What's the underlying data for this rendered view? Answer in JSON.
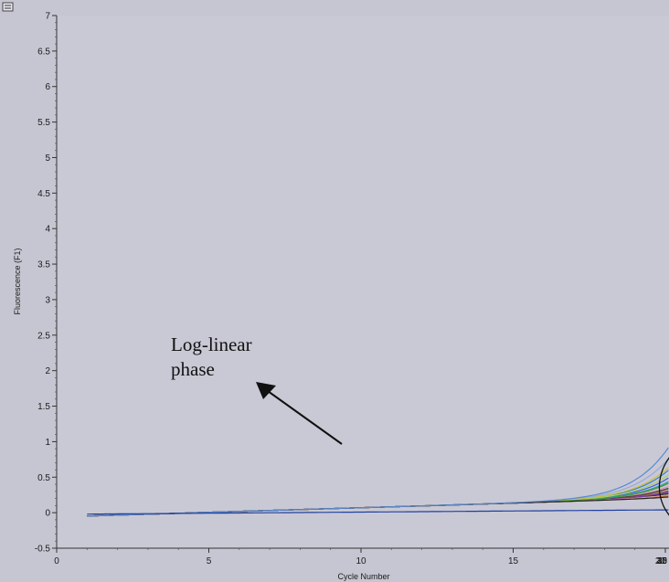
{
  "chart_data": {
    "type": "line",
    "xlabel": "Cycle Number",
    "ylabel": "Fluorescence (F1)",
    "xlim": [
      0,
      40
    ],
    "ylim": [
      -0.5,
      7
    ],
    "x_ticks": [
      0,
      5,
      10,
      15,
      20,
      25,
      30,
      35,
      40
    ],
    "x_tick_labels": [
      "0",
      "5",
      "10",
      "15",
      "20",
      "25",
      "30",
      "35",
      "40"
    ],
    "y_ticks": [
      -0.5,
      0,
      0.5,
      1,
      1.5,
      2,
      2.5,
      3,
      3.5,
      4,
      4.5,
      5,
      5.5,
      6,
      6.5,
      7
    ],
    "y_tick_labels": [
      "-0.5",
      "0",
      "0.5",
      "1",
      "1.5",
      "2",
      "2.5",
      "3",
      "3.5",
      "4",
      "4.5",
      "5",
      "5.5",
      "6",
      "6.5",
      "7"
    ],
    "grid": false,
    "annotation": {
      "lines": [
        "Log-linear",
        "phase"
      ],
      "target": {
        "x": 21.5,
        "y": 0.35
      }
    },
    "series": [
      {
        "color": "#e8202a",
        "curve": {
          "base": -0.06,
          "slope": 0.013,
          "plateau": 6.95,
          "midpoint": 25.4,
          "steepness": 0.95
        }
      },
      {
        "color": "#1f8f4a",
        "curve": {
          "base": -0.06,
          "slope": 0.013,
          "plateau": 6.48,
          "midpoint": 24.1,
          "steepness": 0.95
        }
      },
      {
        "color": "#1f3f8a",
        "curve": {
          "base": -0.06,
          "slope": 0.013,
          "plateau": 6.4,
          "midpoint": 24.5,
          "steepness": 0.95
        }
      },
      {
        "color": "#222222",
        "curve": {
          "base": -0.06,
          "slope": 0.013,
          "plateau": 6.35,
          "midpoint": 24.9,
          "steepness": 0.95
        }
      },
      {
        "color": "#b03090",
        "curve": {
          "base": -0.06,
          "slope": 0.013,
          "plateau": 6.1,
          "midpoint": 23.6,
          "steepness": 0.95
        }
      },
      {
        "color": "#3a7fd0",
        "curve": {
          "base": -0.06,
          "slope": 0.013,
          "plateau": 6.0,
          "midpoint": 22.9,
          "steepness": 0.95
        }
      },
      {
        "color": "#9aa8d8",
        "curve": {
          "base": -0.06,
          "slope": 0.013,
          "plateau": 5.95,
          "midpoint": 22.5,
          "steepness": 0.95
        }
      },
      {
        "color": "#8c6b3a",
        "curve": {
          "base": -0.06,
          "slope": 0.013,
          "plateau": 5.85,
          "midpoint": 24.3,
          "steepness": 0.95
        }
      },
      {
        "color": "#e090b0",
        "curve": {
          "base": -0.06,
          "slope": 0.013,
          "plateau": 5.75,
          "midpoint": 23.8,
          "steepness": 0.95
        }
      },
      {
        "color": "#4060e0",
        "curve": {
          "base": -0.06,
          "slope": 0.013,
          "plateau": 5.68,
          "midpoint": 23.2,
          "steepness": 0.95
        }
      },
      {
        "color": "#d02020",
        "curve": {
          "base": -0.06,
          "slope": 0.013,
          "plateau": 5.62,
          "midpoint": 24.0,
          "steepness": 0.95
        }
      },
      {
        "color": "#30a0a0",
        "curve": {
          "base": -0.06,
          "slope": 0.013,
          "plateau": 5.58,
          "midpoint": 23.4,
          "steepness": 0.95
        }
      },
      {
        "color": "#c8c040",
        "curve": {
          "base": -0.06,
          "slope": 0.013,
          "plateau": 5.52,
          "midpoint": 22.7,
          "steepness": 0.95
        }
      },
      {
        "color": "#a8d060",
        "curve": {
          "base": -0.06,
          "slope": 0.013,
          "plateau": 5.48,
          "midpoint": 23.0,
          "steepness": 0.95
        }
      },
      {
        "color": "#d07020",
        "curve": {
          "base": -0.06,
          "slope": 0.013,
          "plateau": 5.42,
          "midpoint": 25.6,
          "steepness": 0.95
        }
      },
      {
        "color": "#2a2a2a",
        "curve": {
          "base": -0.06,
          "slope": 0.013,
          "plateau": 5.38,
          "midpoint": 24.7,
          "steepness": 0.95
        }
      },
      {
        "color": "#4a4a4a",
        "curve": {
          "base": -0.06,
          "slope": 0.013,
          "plateau": 5.3,
          "midpoint": 23.9,
          "steepness": 0.95
        }
      },
      {
        "color": "#7a3ab0",
        "curve": {
          "base": -0.06,
          "slope": 0.013,
          "plateau": 5.25,
          "midpoint": 24.4,
          "steepness": 0.95
        }
      },
      {
        "color": "#3aa03a",
        "curve": {
          "base": -0.06,
          "slope": 0.013,
          "plateau": 5.55,
          "midpoint": 23.5,
          "steepness": 0.95
        }
      },
      {
        "color": "#e0a0a0",
        "curve": {
          "base": -0.06,
          "slope": 0.013,
          "plateau": 5.65,
          "midpoint": 25.1,
          "steepness": 0.95
        }
      },
      {
        "color": "#202020",
        "curve": {
          "base": -0.06,
          "slope": 0.013,
          "plateau": 5.2,
          "midpoint": 26.0,
          "steepness": 0.95
        }
      },
      {
        "color": "#5a8ad0",
        "curve": {
          "base": -0.06,
          "slope": 0.013,
          "plateau": 5.9,
          "midpoint": 22.2,
          "steepness": 0.95
        }
      },
      {
        "color": "#2040a0",
        "flat": true,
        "y0": -0.02,
        "y1": 0.04
      }
    ]
  }
}
